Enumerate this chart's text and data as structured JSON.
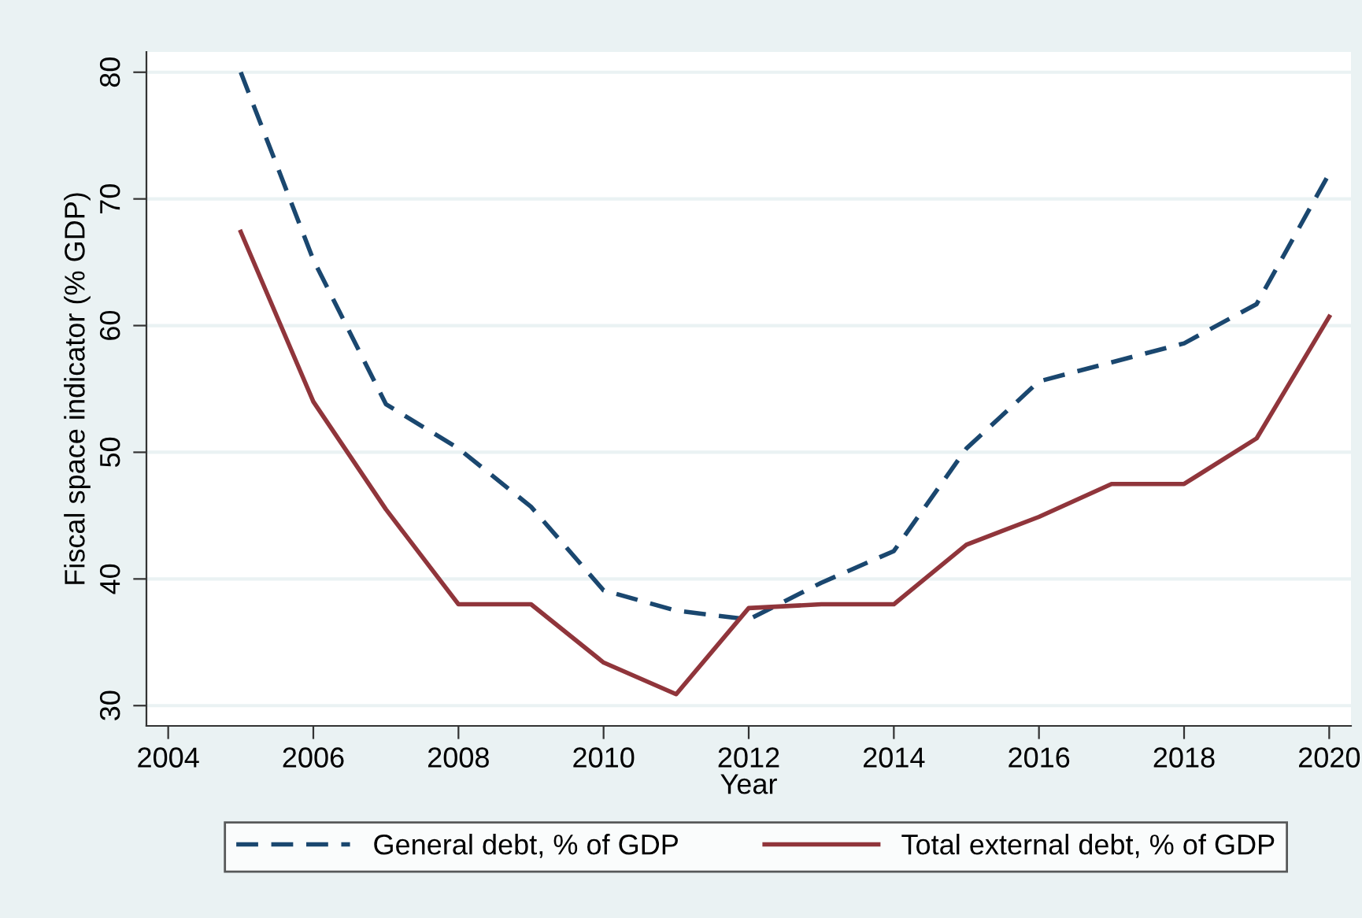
{
  "chart_data": {
    "type": "line",
    "xlabel": "Year",
    "ylabel": "Fiscal space indicator (% GDP)",
    "x": [
      2005,
      2006,
      2007,
      2008,
      2009,
      2010,
      2011,
      2012,
      2013,
      2014,
      2015,
      2016,
      2017,
      2018,
      2019,
      2020
    ],
    "series": [
      {
        "name": "General debt, % of GDP",
        "color": "#1a476f",
        "line_style": "dashed",
        "values": [
          80.0,
          65.2,
          53.8,
          50.3,
          45.7,
          39.1,
          37.5,
          36.8,
          39.7,
          42.2,
          50.3,
          55.6,
          57.1,
          58.6,
          61.7,
          72.0
        ]
      },
      {
        "name": "Total external debt, % of GDP",
        "color": "#90353b",
        "line_style": "solid",
        "values": [
          67.4,
          54.0,
          45.5,
          38.0,
          38.0,
          33.4,
          30.9,
          37.7,
          38.0,
          38.0,
          42.7,
          44.9,
          47.5,
          47.5,
          51.1,
          60.7
        ]
      }
    ],
    "xlim": [
      2003.7,
      2020.3
    ],
    "ylim": [
      28.4,
      81.6
    ],
    "xticks": [
      2004,
      2006,
      2008,
      2010,
      2012,
      2014,
      2016,
      2018,
      2020
    ],
    "yticks": [
      30,
      40,
      50,
      60,
      70,
      80
    ],
    "grid": "y",
    "legend": "bottom",
    "marker": "none"
  }
}
